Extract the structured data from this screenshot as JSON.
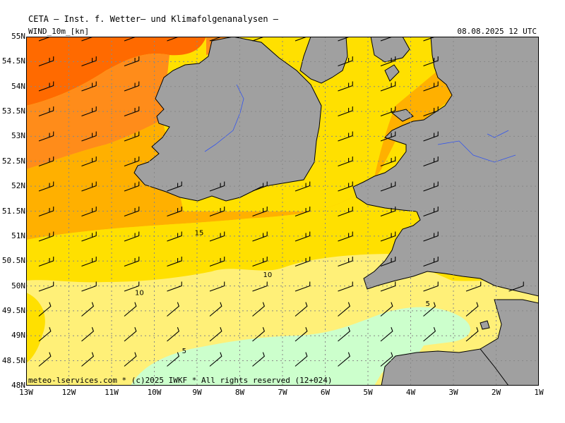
{
  "header": {
    "title": "CETA – Inst. f. Wetter– und Klimafolgenanalysen –",
    "variable": "WIND_10m_[kn]",
    "valid_time": "08.08.2025 12 UTC"
  },
  "axes": {
    "y_labels": [
      "55N",
      "54.5N",
      "54N",
      "53.5N",
      "53N",
      "52.5N",
      "52N",
      "51.5N",
      "51N",
      "50.5N",
      "50N",
      "49.5N",
      "49N",
      "48.5N",
      "48N"
    ],
    "x_labels": [
      "13W",
      "12W",
      "11W",
      "10W",
      "9W",
      "8W",
      "7W",
      "6W",
      "5W",
      "4W",
      "3W",
      "2W",
      "1W"
    ]
  },
  "contours": {
    "labels": [
      {
        "text": "15",
        "lon": -8.95,
        "lat": 51.02
      },
      {
        "text": "10",
        "lon": -7.35,
        "lat": 50.18
      },
      {
        "text": "10",
        "lon": -10.35,
        "lat": 49.82
      },
      {
        "text": "5",
        "lon": -3.6,
        "lat": 49.6
      },
      {
        "text": "5",
        "lon": -9.3,
        "lat": 48.65
      }
    ]
  },
  "colors": {
    "land": "#a0a0a0",
    "band_0_5": "#ccffcc",
    "band_5_10": "#fff078",
    "band_10_15": "#ffe000",
    "band_15_20": "#ffb000",
    "band_20_25": "#ff8c1a",
    "band_25_30": "#ff6a00"
  },
  "credit": "meteo-lservices.com * (c)2025 IWKF * All rights reserved (12+024)"
}
